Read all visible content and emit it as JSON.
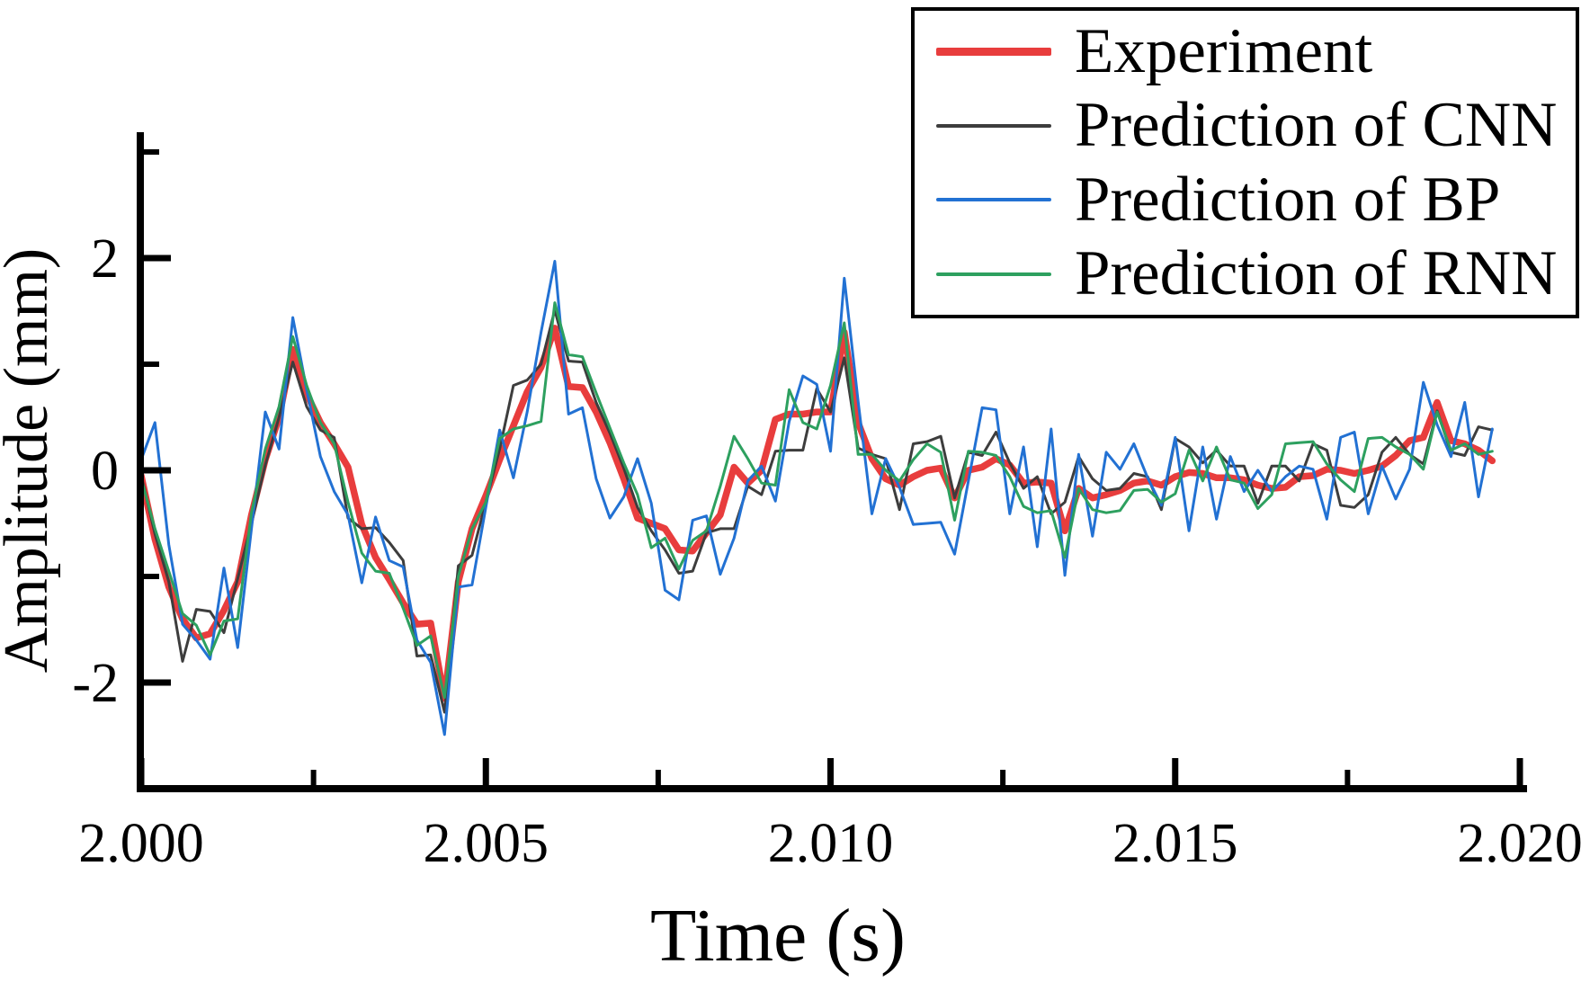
{
  "chart_data": {
    "type": "line",
    "title": "",
    "xlabel": "Time (s)",
    "ylabel": "Amplitude (mm)",
    "xlim": [
      2.0,
      2.02
    ],
    "ylim": [
      -3.0,
      3.2
    ],
    "grid": false,
    "legend_position": "top-right",
    "x_tick_labels": [
      "2.000",
      "2.005",
      "2.010",
      "2.015",
      "2.020"
    ],
    "x_ticks_major": [
      2.0,
      2.005,
      2.01,
      2.015,
      2.02
    ],
    "x_ticks_minor": [
      2.0025,
      2.0075,
      2.0125,
      2.0175
    ],
    "y_tick_labels": [
      "-2",
      "0",
      "2"
    ],
    "y_ticks_major": [
      -2,
      0,
      2
    ],
    "y_ticks_minor": [
      -1,
      1,
      3
    ],
    "x_start": 2.0,
    "x_step": 0.0002,
    "series": [
      {
        "name": "Experiment",
        "color": "#e83d3d",
        "width": 7.5,
        "values": [
          -0.05,
          -0.65,
          -1.1,
          -1.4,
          -1.58,
          -1.54,
          -1.32,
          -1.05,
          -0.42,
          0.1,
          0.5,
          1.14,
          0.72,
          0.45,
          0.25,
          0.03,
          -0.51,
          -0.82,
          -1.03,
          -1.25,
          -1.45,
          -1.44,
          -2.15,
          -1.05,
          -0.55,
          -0.24,
          0.1,
          0.42,
          0.74,
          0.97,
          1.34,
          0.79,
          0.78,
          0.55,
          0.26,
          -0.08,
          -0.45,
          -0.5,
          -0.55,
          -0.75,
          -0.76,
          -0.59,
          -0.42,
          0.03,
          -0.12,
          0.0,
          0.48,
          0.53,
          0.53,
          0.55,
          0.55,
          1.3,
          0.45,
          0.11,
          -0.08,
          -0.14,
          -0.06,
          0.0,
          0.02,
          -0.26,
          0.0,
          0.03,
          0.11,
          0.05,
          -0.12,
          -0.11,
          -0.12,
          -0.57,
          -0.17,
          -0.26,
          -0.23,
          -0.19,
          -0.12,
          -0.1,
          -0.14,
          -0.06,
          -0.02,
          -0.03,
          -0.07,
          -0.07,
          -0.09,
          -0.14,
          -0.17,
          -0.16,
          -0.06,
          -0.05,
          0.01,
          0.0,
          -0.03,
          0.0,
          0.04,
          0.14,
          0.28,
          0.31,
          0.64,
          0.28,
          0.25,
          0.19,
          0.09
        ]
      },
      {
        "name": "Prediction of CNN",
        "color": "#3d3d3d",
        "width": 3,
        "values": [
          -0.05,
          -0.6,
          -1.05,
          -1.8,
          -1.31,
          -1.33,
          -1.53,
          -1.02,
          -0.5,
          0.05,
          0.5,
          1.02,
          0.6,
          0.38,
          0.31,
          -0.45,
          -0.55,
          -0.54,
          -0.68,
          -0.85,
          -1.75,
          -1.74,
          -2.28,
          -0.9,
          -0.8,
          -0.3,
          0.2,
          0.8,
          0.85,
          1.0,
          1.51,
          1.03,
          1.02,
          0.64,
          0.35,
          0.02,
          -0.35,
          -0.57,
          -0.75,
          -0.97,
          -0.95,
          -0.59,
          -0.55,
          -0.55,
          -0.15,
          -0.23,
          0.18,
          0.19,
          0.19,
          0.77,
          0.55,
          1.06,
          0.21,
          0.15,
          0.11,
          -0.37,
          0.25,
          0.27,
          0.32,
          -0.26,
          0.17,
          0.14,
          0.36,
          0.07,
          -0.17,
          -0.06,
          -0.41,
          -0.3,
          0.13,
          -0.08,
          -0.19,
          -0.17,
          -0.03,
          -0.06,
          -0.37,
          0.3,
          0.22,
          0.07,
          0.19,
          0.04,
          0.04,
          -0.31,
          0.04,
          0.04,
          -0.1,
          0.25,
          0.19,
          -0.33,
          -0.35,
          -0.23,
          0.17,
          0.31,
          0.15,
          0.06,
          0.56,
          0.17,
          0.14,
          0.41,
          0.38
        ]
      },
      {
        "name": "Prediction of BP",
        "color": "#2271d3",
        "width": 3,
        "values": [
          0.1,
          0.45,
          -0.7,
          -1.45,
          -1.6,
          -1.78,
          -0.92,
          -1.67,
          -0.55,
          0.55,
          0.2,
          1.44,
          0.76,
          0.13,
          -0.2,
          -0.42,
          -1.06,
          -0.44,
          -0.85,
          -0.91,
          -1.6,
          -1.81,
          -2.49,
          -1.1,
          -1.08,
          -0.35,
          0.38,
          -0.07,
          0.55,
          1.3,
          1.97,
          0.53,
          0.59,
          -0.08,
          -0.45,
          -0.25,
          0.11,
          -0.31,
          -1.13,
          -1.22,
          -0.47,
          -0.43,
          -0.98,
          -0.64,
          -0.1,
          0.04,
          -0.29,
          0.46,
          0.89,
          0.81,
          0.18,
          1.81,
          0.65,
          -0.41,
          0.11,
          -0.16,
          -0.51,
          -0.5,
          -0.49,
          -0.79,
          -0.1,
          0.59,
          0.57,
          -0.41,
          0.22,
          -0.72,
          0.39,
          -0.99,
          0.15,
          -0.62,
          0.17,
          0.01,
          0.25,
          -0.07,
          -0.33,
          0.31,
          -0.57,
          0.22,
          -0.46,
          0.13,
          -0.2,
          0.0,
          -0.2,
          -0.06,
          0.04,
          0.01,
          -0.46,
          0.31,
          0.36,
          -0.41,
          0.04,
          -0.27,
          0.01,
          0.83,
          0.43,
          0.13,
          0.64,
          -0.25,
          0.39
        ]
      },
      {
        "name": "Prediction of RNN",
        "color": "#2da05f",
        "width": 3,
        "values": [
          -0.08,
          -0.55,
          -0.95,
          -1.35,
          -1.46,
          -1.74,
          -1.42,
          -1.4,
          -0.4,
          0.2,
          0.6,
          1.26,
          0.8,
          0.45,
          0.25,
          -0.3,
          -0.78,
          -0.95,
          -0.97,
          -1.3,
          -1.65,
          -1.56,
          -2.14,
          -1.0,
          -0.55,
          -0.3,
          0.3,
          0.39,
          0.42,
          0.46,
          1.58,
          1.09,
          1.07,
          0.73,
          0.4,
          0.07,
          -0.23,
          -0.73,
          -0.64,
          -0.93,
          -0.66,
          -0.57,
          -0.15,
          0.32,
          0.11,
          -0.12,
          -0.14,
          0.76,
          0.45,
          0.39,
          0.8,
          1.39,
          0.15,
          0.15,
          0.0,
          -0.1,
          0.1,
          0.25,
          0.17,
          -0.47,
          0.18,
          0.17,
          0.14,
          -0.06,
          -0.34,
          -0.4,
          -0.38,
          -0.82,
          -0.17,
          -0.37,
          -0.4,
          -0.38,
          -0.19,
          -0.18,
          -0.3,
          -0.22,
          0.19,
          -0.1,
          0.22,
          -0.09,
          -0.12,
          -0.36,
          -0.23,
          0.25,
          0.26,
          0.27,
          0.06,
          -0.09,
          -0.2,
          0.3,
          0.31,
          0.22,
          0.15,
          0.01,
          0.55,
          0.19,
          0.25,
          0.15,
          0.18
        ]
      }
    ]
  }
}
